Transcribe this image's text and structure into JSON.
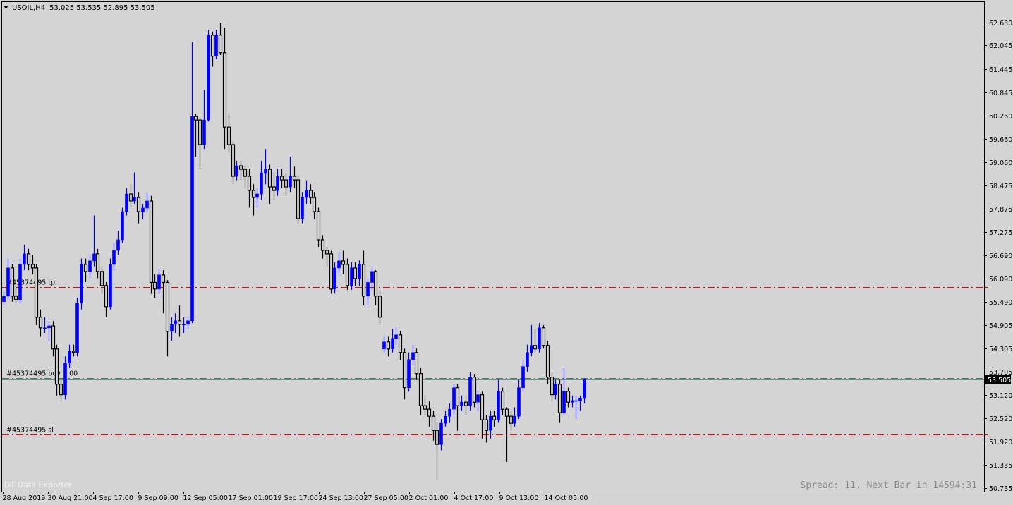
{
  "header": {
    "menu_icon": "triangle-down-icon",
    "symbol": "USOIL,H4",
    "ohlc": "53.025 53.535 52.895 53.505"
  },
  "watermark": "DT Data Exporter",
  "status": "Spread: 11. Next Bar in 14594:31",
  "current_price": "53.505",
  "colors": {
    "background": "#d4d4d4",
    "bull": "#0000ff",
    "bear_outline": "#000000",
    "tp_sl": "#ff0000",
    "order": "#2e8b57",
    "bid": "#778899"
  },
  "orders": [
    {
      "label": "#45374495 tp",
      "price": 55.87,
      "color": "#ff0000"
    },
    {
      "label": "#45374495 buy 1.00",
      "price": 53.55,
      "color": "#2e8b57"
    },
    {
      "label": "#45374495 sl",
      "price": 52.11,
      "color": "#ff0000"
    }
  ],
  "chart_data": {
    "type": "candlestick",
    "title": "USOIL,H4",
    "ylim": [
      50.735,
      62.63
    ],
    "grid": false,
    "y_ticks": [
      "62.630",
      "62.045",
      "61.445",
      "60.845",
      "60.260",
      "59.660",
      "59.060",
      "58.475",
      "57.875",
      "57.275",
      "56.690",
      "56.090",
      "55.490",
      "54.905",
      "54.305",
      "53.705",
      "53.120",
      "52.520",
      "51.920",
      "51.335",
      "50.735"
    ],
    "x_ticks": [
      "28 Aug 2019",
      "30 Aug 21:00",
      "4 Sep 17:00",
      "9 Sep 09:00",
      "12 Sep 05:00",
      "17 Sep 01:00",
      "19 Sep 17:00",
      "24 Sep 13:00",
      "27 Sep 05:00",
      "2 Oct 01:00",
      "4 Oct 17:00",
      "9 Oct 13:00",
      "14 Oct 05:00"
    ],
    "bid": 53.505,
    "ohlc": [
      [
        55.5,
        55.8,
        55.4,
        55.64
      ],
      [
        55.64,
        56.6,
        55.55,
        56.36
      ],
      [
        56.36,
        56.45,
        55.5,
        55.64
      ],
      [
        55.64,
        55.9,
        55.45,
        55.55
      ],
      [
        55.55,
        56.6,
        55.45,
        56.45
      ],
      [
        56.45,
        56.95,
        56.3,
        56.72
      ],
      [
        56.72,
        56.85,
        56.3,
        56.45
      ],
      [
        56.45,
        56.7,
        56.2,
        56.36
      ],
      [
        56.36,
        56.45,
        54.9,
        55.1
      ],
      [
        55.1,
        55.3,
        54.6,
        54.83
      ],
      [
        54.83,
        55.1,
        54.7,
        54.83
      ],
      [
        54.83,
        55.0,
        54.5,
        54.88
      ],
      [
        54.88,
        55.0,
        54.1,
        54.29
      ],
      [
        54.29,
        54.4,
        53.1,
        53.39
      ],
      [
        53.39,
        53.5,
        52.9,
        53.12
      ],
      [
        53.12,
        54.1,
        53.0,
        53.93
      ],
      [
        53.93,
        54.4,
        53.8,
        54.23
      ],
      [
        54.23,
        54.4,
        54.1,
        54.2
      ],
      [
        54.2,
        55.6,
        54.1,
        55.46
      ],
      [
        55.46,
        56.6,
        55.3,
        56.45
      ],
      [
        56.45,
        56.6,
        56.0,
        56.27
      ],
      [
        56.27,
        56.7,
        56.1,
        56.54
      ],
      [
        56.54,
        57.7,
        56.4,
        56.72
      ],
      [
        56.72,
        56.85,
        56.1,
        56.27
      ],
      [
        56.27,
        56.4,
        55.7,
        55.91
      ],
      [
        55.91,
        56.0,
        55.1,
        55.37
      ],
      [
        55.37,
        56.6,
        55.3,
        56.45
      ],
      [
        56.45,
        57.0,
        56.3,
        56.81
      ],
      [
        56.81,
        57.3,
        56.7,
        57.08
      ],
      [
        57.08,
        57.9,
        57.0,
        57.8
      ],
      [
        57.8,
        58.4,
        57.7,
        58.25
      ],
      [
        58.25,
        58.5,
        57.9,
        58.07
      ],
      [
        58.07,
        58.8,
        58.0,
        58.16
      ],
      [
        58.16,
        58.3,
        57.5,
        57.8
      ],
      [
        57.8,
        58.0,
        57.6,
        57.89
      ],
      [
        57.89,
        58.3,
        57.8,
        58.07
      ],
      [
        58.07,
        58.2,
        55.7,
        55.99
      ],
      [
        55.99,
        56.2,
        55.6,
        55.82
      ],
      [
        55.82,
        56.35,
        55.7,
        56.18
      ],
      [
        56.18,
        56.3,
        55.2,
        55.99
      ],
      [
        55.99,
        56.05,
        54.1,
        54.74
      ],
      [
        54.74,
        55.1,
        54.5,
        54.92
      ],
      [
        54.92,
        55.2,
        54.7,
        55.01
      ],
      [
        55.01,
        55.4,
        54.6,
        54.92
      ],
      [
        54.92,
        55.1,
        54.7,
        54.92
      ],
      [
        54.92,
        55.1,
        54.8,
        55.01
      ],
      [
        55.01,
        62.13,
        54.95,
        60.23
      ],
      [
        60.23,
        60.3,
        59.2,
        60.14
      ],
      [
        60.14,
        60.2,
        58.9,
        59.51
      ],
      [
        59.51,
        60.9,
        59.4,
        60.14
      ],
      [
        60.14,
        62.45,
        60.1,
        62.31
      ],
      [
        62.31,
        62.4,
        61.5,
        61.77
      ],
      [
        61.77,
        62.45,
        61.7,
        62.31
      ],
      [
        62.31,
        62.62,
        61.8,
        61.86
      ],
      [
        61.86,
        62.5,
        59.4,
        59.96
      ],
      [
        59.96,
        60.3,
        59.3,
        59.51
      ],
      [
        59.51,
        59.6,
        58.5,
        58.7
      ],
      [
        58.7,
        59.1,
        58.6,
        58.97
      ],
      [
        58.97,
        59.1,
        58.6,
        58.88
      ],
      [
        58.88,
        59.0,
        58.4,
        58.7
      ],
      [
        58.7,
        58.9,
        57.9,
        58.34
      ],
      [
        58.34,
        58.5,
        57.7,
        58.16
      ],
      [
        58.16,
        58.4,
        57.9,
        58.25
      ],
      [
        58.25,
        59.1,
        58.1,
        58.79
      ],
      [
        58.79,
        59.4,
        58.5,
        58.88
      ],
      [
        58.88,
        59.0,
        58.0,
        58.43
      ],
      [
        58.43,
        58.8,
        58.1,
        58.34
      ],
      [
        58.34,
        58.9,
        58.2,
        58.7
      ],
      [
        58.7,
        58.9,
        58.4,
        58.61
      ],
      [
        58.61,
        58.8,
        58.2,
        58.43
      ],
      [
        58.43,
        59.2,
        58.3,
        58.7
      ],
      [
        58.7,
        58.95,
        58.4,
        58.61
      ],
      [
        58.61,
        58.7,
        57.5,
        57.62
      ],
      [
        57.62,
        58.3,
        57.5,
        58.16
      ],
      [
        58.16,
        58.6,
        58.0,
        58.34
      ],
      [
        58.34,
        58.5,
        58.0,
        58.16
      ],
      [
        58.16,
        58.3,
        57.6,
        57.8
      ],
      [
        57.8,
        57.9,
        56.9,
        57.08
      ],
      [
        57.08,
        57.2,
        56.6,
        56.81
      ],
      [
        56.81,
        56.9,
        56.4,
        56.72
      ],
      [
        56.72,
        56.8,
        55.7,
        55.82
      ],
      [
        55.82,
        56.5,
        55.7,
        56.36
      ],
      [
        56.36,
        56.75,
        56.2,
        56.54
      ],
      [
        56.54,
        56.8,
        56.2,
        56.45
      ],
      [
        56.45,
        56.6,
        55.8,
        55.91
      ],
      [
        55.91,
        56.5,
        55.8,
        56.36
      ],
      [
        56.36,
        56.5,
        55.9,
        56.09
      ],
      [
        56.09,
        56.55,
        55.9,
        56.45
      ],
      [
        56.45,
        56.8,
        55.4,
        55.64
      ],
      [
        55.64,
        56.1,
        55.4,
        55.99
      ],
      [
        55.99,
        56.4,
        55.8,
        56.27
      ],
      [
        56.27,
        56.3,
        55.4,
        55.64
      ],
      [
        55.64,
        55.8,
        54.9,
        55.1
      ],
      [
        54.29,
        54.6,
        54.2,
        54.47
      ],
      [
        54.47,
        54.6,
        54.1,
        54.29
      ],
      [
        54.29,
        54.8,
        54.2,
        54.56
      ],
      [
        54.56,
        54.85,
        54.4,
        54.65
      ],
      [
        54.65,
        54.75,
        54.0,
        54.2
      ],
      [
        54.2,
        54.3,
        53.0,
        53.3
      ],
      [
        53.3,
        54.2,
        53.2,
        54.02
      ],
      [
        54.02,
        54.4,
        53.9,
        54.2
      ],
      [
        54.2,
        54.3,
        53.5,
        53.66
      ],
      [
        53.66,
        53.8,
        52.6,
        52.84
      ],
      [
        52.84,
        53.1,
        52.6,
        52.75
      ],
      [
        52.75,
        52.95,
        52.3,
        52.57
      ],
      [
        52.57,
        52.7,
        51.95,
        52.21
      ],
      [
        52.21,
        52.4,
        50.95,
        51.85
      ],
      [
        51.85,
        52.5,
        51.7,
        52.39
      ],
      [
        52.39,
        52.7,
        52.3,
        52.57
      ],
      [
        52.57,
        52.9,
        52.4,
        52.75
      ],
      [
        52.75,
        53.4,
        52.6,
        53.3
      ],
      [
        53.3,
        53.4,
        52.2,
        52.84
      ],
      [
        52.84,
        53.1,
        52.7,
        52.93
      ],
      [
        52.93,
        53.1,
        52.6,
        52.84
      ],
      [
        52.84,
        53.7,
        52.7,
        53.57
      ],
      [
        53.57,
        53.65,
        52.8,
        52.93
      ],
      [
        52.93,
        53.2,
        52.7,
        53.12
      ],
      [
        53.12,
        53.2,
        52.0,
        52.48
      ],
      [
        52.48,
        52.6,
        51.9,
        52.21
      ],
      [
        52.21,
        52.7,
        52.0,
        52.57
      ],
      [
        52.57,
        52.7,
        52.3,
        52.48
      ],
      [
        52.48,
        53.5,
        52.4,
        53.21
      ],
      [
        53.21,
        53.3,
        52.6,
        52.75
      ],
      [
        52.75,
        52.8,
        51.4,
        52.57
      ],
      [
        52.57,
        52.7,
        52.2,
        52.39
      ],
      [
        52.39,
        52.8,
        52.3,
        52.57
      ],
      [
        52.57,
        53.5,
        52.5,
        53.3
      ],
      [
        53.3,
        54.0,
        53.2,
        53.84
      ],
      [
        53.84,
        54.4,
        53.7,
        54.2
      ],
      [
        54.2,
        54.9,
        54.1,
        54.38
      ],
      [
        54.38,
        54.8,
        54.2,
        54.29
      ],
      [
        54.29,
        54.95,
        54.2,
        54.83
      ],
      [
        54.83,
        54.9,
        54.3,
        54.38
      ],
      [
        54.38,
        54.5,
        53.4,
        53.57
      ],
      [
        53.57,
        53.7,
        52.9,
        53.12
      ],
      [
        53.12,
        53.5,
        53.0,
        53.39
      ],
      [
        53.39,
        53.5,
        52.4,
        52.66
      ],
      [
        52.66,
        53.8,
        52.6,
        53.21
      ],
      [
        53.21,
        53.3,
        52.8,
        52.93
      ],
      [
        52.93,
        53.1,
        52.8,
        52.97
      ],
      [
        52.97,
        53.1,
        52.5,
        52.97
      ],
      [
        52.97,
        53.1,
        52.7,
        53.03
      ],
      [
        53.025,
        53.535,
        52.895,
        53.505
      ]
    ]
  }
}
